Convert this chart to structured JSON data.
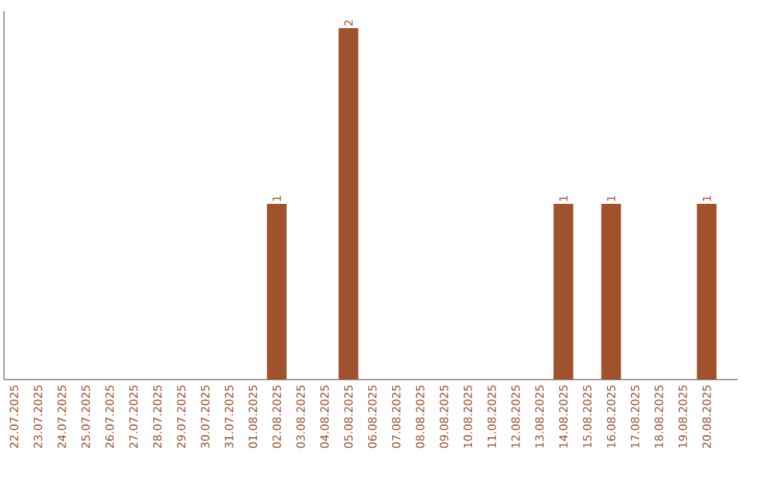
{
  "chart_data": {
    "type": "bar",
    "color": "#a0522d",
    "categories": [
      "22.07.2025",
      "23.07.2025",
      "24.07.2025",
      "25.07.2025",
      "26.07.2025",
      "27.07.2025",
      "28.07.2025",
      "29.07.2025",
      "30.07.2025",
      "31.07.2025",
      "01.08.2025",
      "02.08.2025",
      "03.08.2025",
      "04.08.2025",
      "05.08.2025",
      "06.08.2025",
      "07.08.2025",
      "08.08.2025",
      "09.08.2025",
      "10.08.2025",
      "11.08.2025",
      "12.08.2025",
      "13.08.2025",
      "14.08.2025",
      "15.08.2025",
      "16.08.2025",
      "17.08.2025",
      "18.08.2025",
      "19.08.2025",
      "20.08.2025"
    ],
    "values": [
      0,
      0,
      0,
      0,
      0,
      0,
      0,
      0,
      0,
      0,
      0,
      1,
      0,
      0,
      2,
      0,
      0,
      0,
      0,
      0,
      0,
      0,
      0,
      1,
      0,
      1,
      0,
      0,
      0,
      1
    ],
    "value_labels": [
      null,
      null,
      null,
      null,
      null,
      null,
      null,
      null,
      null,
      null,
      null,
      "1",
      null,
      null,
      "2",
      null,
      null,
      null,
      null,
      null,
      null,
      null,
      null,
      "1",
      null,
      "1",
      null,
      null,
      null,
      "1"
    ],
    "tick_labels": "x",
    "grid": false
  }
}
